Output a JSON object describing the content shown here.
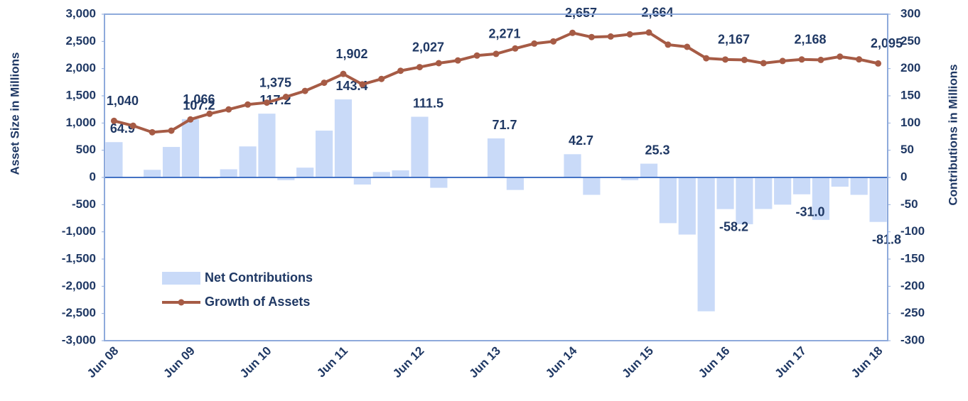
{
  "chart_data": {
    "type": "bar-line",
    "y_label": "Asset Size in Millions",
    "y2_label": "Contributions in Millions",
    "categories": [
      "Jun 08",
      null,
      null,
      null,
      "Jun 09",
      null,
      null,
      null,
      "Jun 10",
      null,
      null,
      null,
      "Jun 11",
      null,
      null,
      null,
      "Jun 12",
      null,
      null,
      null,
      "Jun 13",
      null,
      null,
      null,
      "Jun 14",
      null,
      null,
      null,
      "Jun 15",
      null,
      null,
      null,
      "Jun 16",
      null,
      null,
      null,
      "Jun 17",
      null,
      null,
      null,
      "Jun 18"
    ],
    "series": [
      {
        "name": "Net Contributions",
        "type": "bar",
        "axis": "y2",
        "color": "#c9daf8",
        "values": [
          64.9,
          0,
          14,
          56,
          107.2,
          -2,
          15,
          57,
          117.2,
          -5,
          18,
          86,
          143.4,
          -13,
          10,
          13,
          111.5,
          -19,
          0,
          0,
          71.7,
          -23,
          0,
          0,
          42.7,
          -32,
          0,
          -5,
          25.3,
          -84,
          -105,
          -246,
          -58.2,
          -86,
          -58,
          -50,
          -31.0,
          -78,
          -17,
          -32,
          -81.8
        ],
        "value_labels": [
          "64.9",
          null,
          null,
          null,
          "107.2",
          null,
          null,
          null,
          "117.2",
          null,
          null,
          null,
          "143.4",
          null,
          null,
          null,
          "111.5",
          null,
          null,
          null,
          "71.7",
          null,
          null,
          null,
          "42.7",
          null,
          null,
          null,
          "25.3",
          null,
          null,
          null,
          "-58.2",
          null,
          null,
          null,
          "-31.0",
          null,
          null,
          null,
          "-81.8"
        ]
      },
      {
        "name": "Growth of Assets",
        "type": "line",
        "axis": "y",
        "color": "#a65b45",
        "values": [
          1040,
          950,
          830,
          860,
          1066,
          1170,
          1250,
          1340,
          1375,
          1480,
          1590,
          1740,
          1902,
          1710,
          1810,
          1960,
          2027,
          2100,
          2150,
          2240,
          2271,
          2370,
          2460,
          2500,
          2657,
          2580,
          2590,
          2630,
          2664,
          2440,
          2400,
          2190,
          2167,
          2160,
          2100,
          2140,
          2168,
          2160,
          2220,
          2170,
          2095
        ],
        "value_labels": [
          "1,040",
          null,
          null,
          null,
          "1,066",
          null,
          null,
          null,
          "1,375",
          null,
          null,
          null,
          "1,902",
          null,
          null,
          null,
          "2,027",
          null,
          null,
          null,
          "2,271",
          null,
          null,
          null,
          "2,657",
          null,
          null,
          null,
          "2,664",
          null,
          null,
          null,
          "2,167",
          null,
          null,
          null,
          "2,168",
          null,
          null,
          null,
          "2,095"
        ]
      }
    ],
    "ylim": [
      -3000,
      3000
    ],
    "yticks": [
      {
        "value": -3000,
        "label": "-3,000"
      },
      {
        "value": -2500,
        "label": "-2,500"
      },
      {
        "value": -2000,
        "label": "-2,000"
      },
      {
        "value": -1500,
        "label": "-1,500"
      },
      {
        "value": -1000,
        "label": "-1,000"
      },
      -500,
      0,
      500,
      {
        "value": 1000,
        "label": "1,000"
      },
      {
        "value": 1500,
        "label": "1,500"
      },
      {
        "value": 2000,
        "label": "2,000"
      },
      {
        "value": 2500,
        "label": "2,500"
      },
      {
        "value": 3000,
        "label": "3,000"
      }
    ],
    "y2lim": [
      -300,
      300
    ],
    "y2ticks": [
      -300,
      -250,
      -200,
      -150,
      -100,
      -50,
      0,
      50,
      100,
      150,
      200,
      250,
      300
    ],
    "legend": "lower-left"
  }
}
